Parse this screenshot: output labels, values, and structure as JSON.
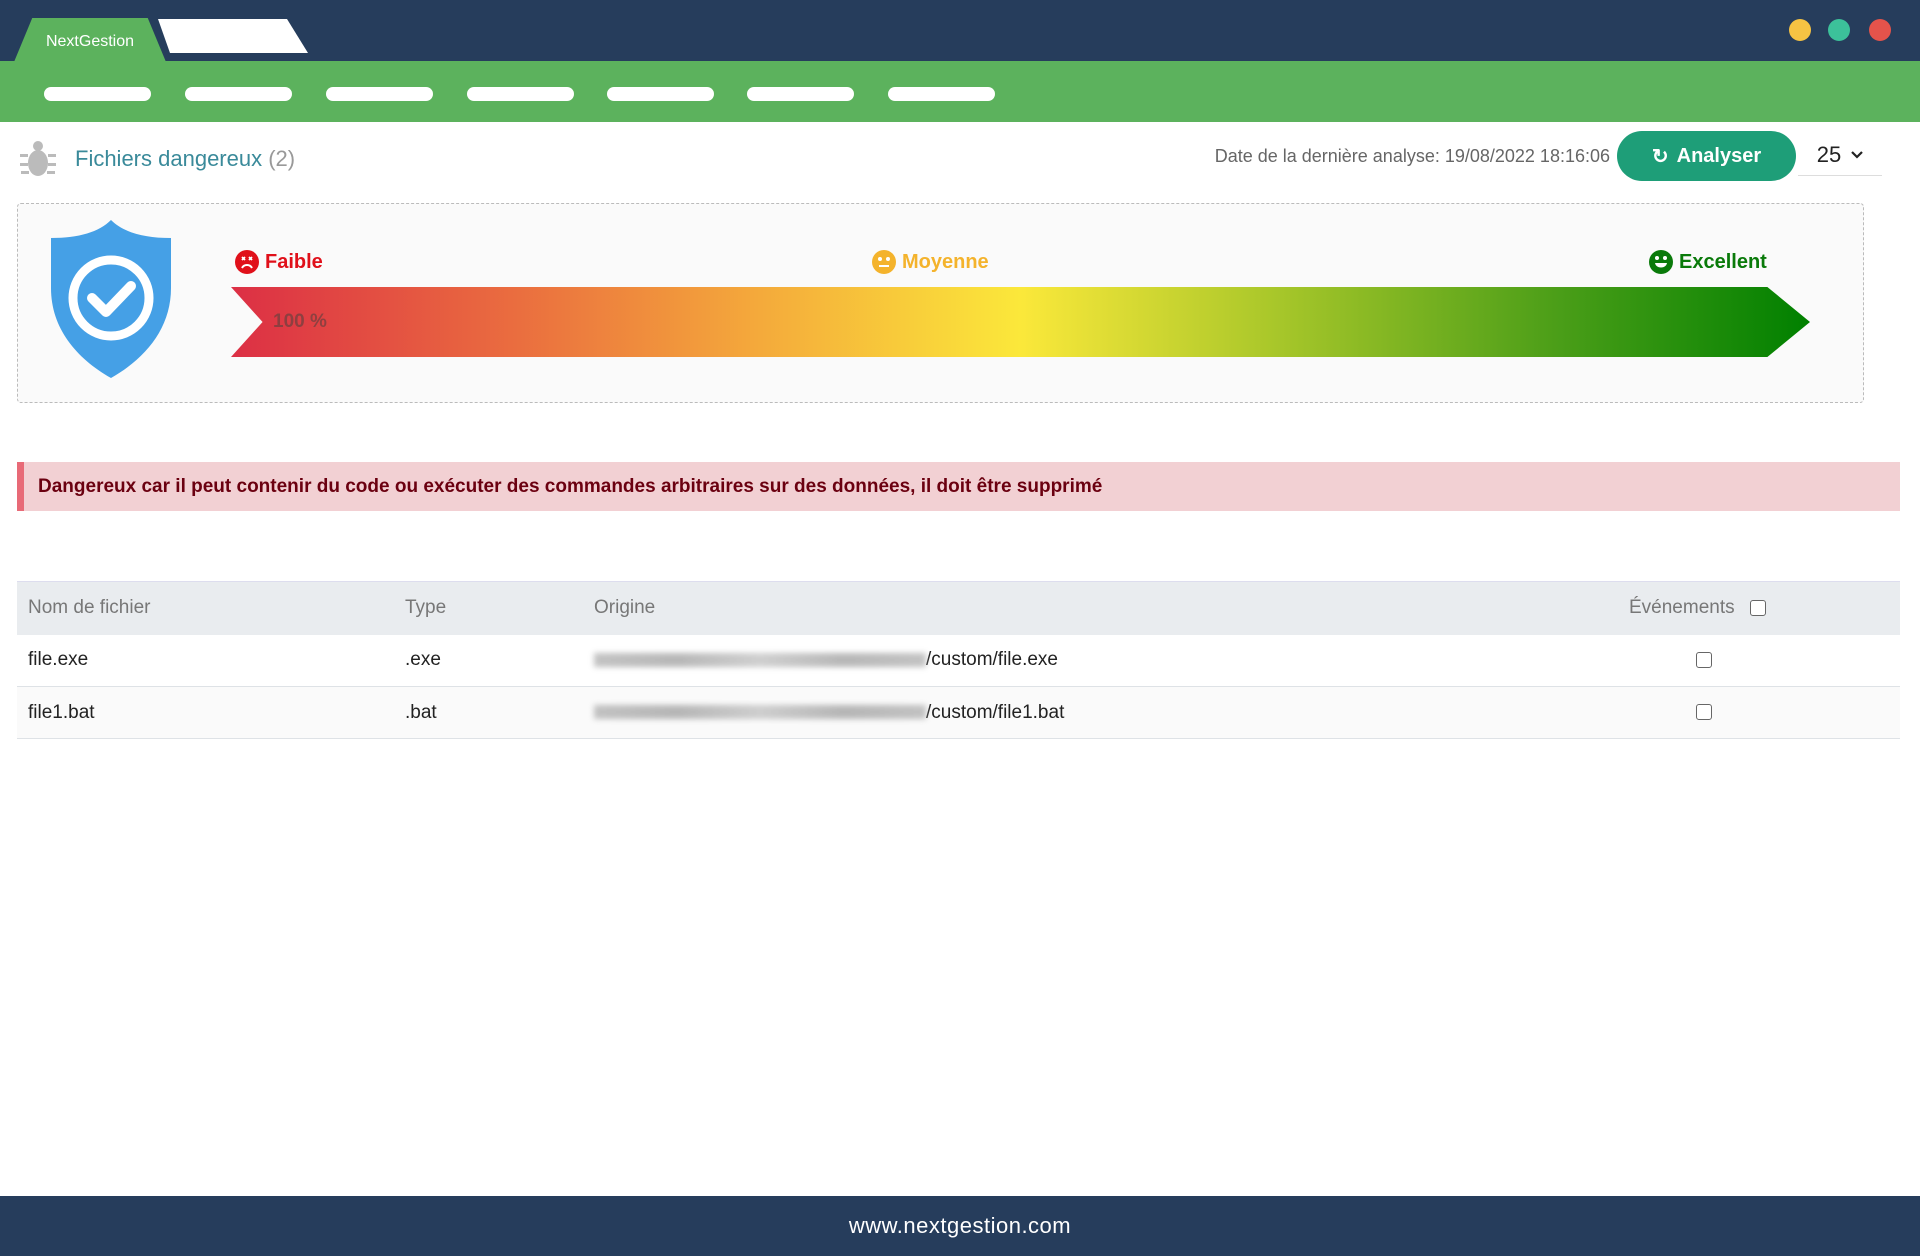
{
  "window": {
    "tab_active": "NextGestion",
    "dots": [
      "#f6c343",
      "#3cc19a",
      "#e5534b"
    ]
  },
  "nav": {
    "item_count_note": null
  },
  "header": {
    "title": "Fichiers dangereux",
    "count": "(2)",
    "last_analysis": "Date de la dernière analyse: 19/08/2022 18:16:06",
    "analyze_button": "Analyser",
    "page_size": "25"
  },
  "score": {
    "labels": {
      "low": "Faible",
      "medium": "Moyenne",
      "high": "Excellent"
    },
    "value_label": "100 %",
    "colors": {
      "low": "#e0101a",
      "medium": "#f4b32c",
      "high": "#0a7a0a"
    }
  },
  "alert": {
    "text": "Dangereux car il peut contenir du code ou exécuter des commandes arbitraires sur des données, il doit être supprimé"
  },
  "table": {
    "headers": [
      "Nom de fichier",
      "Type",
      "Origine",
      "Événements"
    ],
    "rows": [
      {
        "name": "file.exe",
        "type": ".exe",
        "origin_suffix": "/custom/file.exe",
        "checked": false
      },
      {
        "name": "file1.bat",
        "type": ".bat",
        "origin_suffix": "/custom/file1.bat",
        "checked": false
      }
    ]
  },
  "footer": {
    "url": "www.nextgestion.com"
  }
}
